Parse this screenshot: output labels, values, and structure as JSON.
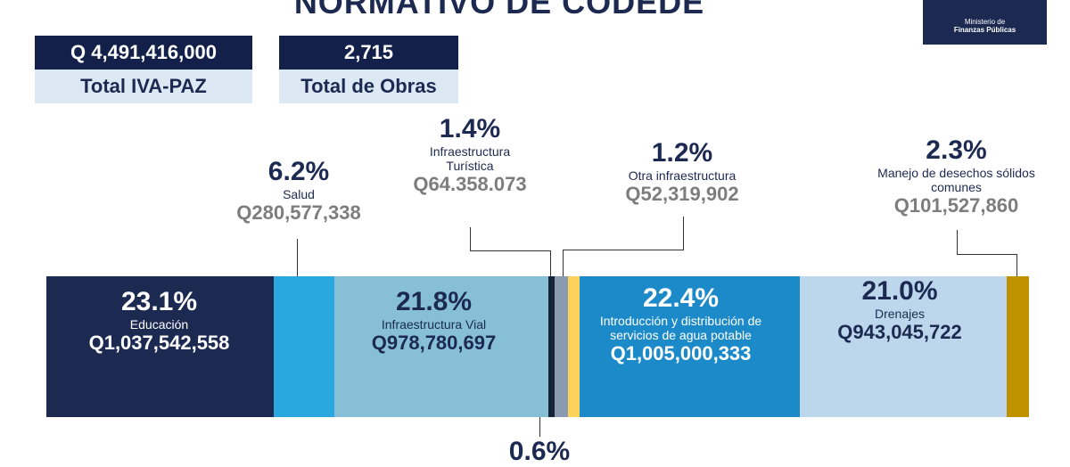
{
  "title": "NORMATIVO DE CODEDE",
  "logo": {
    "line1": "Ministerio de",
    "line2": "Finanzas Públicas"
  },
  "kpis": [
    {
      "value": "Q 4,491,416,000",
      "label": "Total IVA-PAZ"
    },
    {
      "value": "2,715",
      "label": "Total de Obras"
    }
  ],
  "chart_data": {
    "type": "bar",
    "orientation": "horizontal-stacked",
    "segments": [
      {
        "name": "Educación",
        "pct_label": "23.1%",
        "percent": 23.1,
        "amount": "Q1,037,542,558",
        "color": "#1c2951"
      },
      {
        "name": "Salud",
        "pct_label": "6.2%",
        "percent": 6.2,
        "amount": "Q280,577,338",
        "color": "#29a8e0"
      },
      {
        "name": "Infraestructura Vial",
        "pct_label": "21.8%",
        "percent": 21.8,
        "amount": "Q978,780,697",
        "color": "#86bfd6"
      },
      {
        "name": "",
        "pct_label": "0.6%",
        "percent": 0.6,
        "amount": "",
        "color": "#142338"
      },
      {
        "name": "Infraestructura Turística",
        "pct_label": "1.4%",
        "percent": 1.4,
        "amount": "Q64.358.073",
        "color": "#8a9bb0"
      },
      {
        "name": "Otra infraestructura",
        "pct_label": "1.2%",
        "percent": 1.2,
        "amount": "Q52,319,902",
        "color": "#fcd25a"
      },
      {
        "name": "Introducción y distribución de servicios de agua potable",
        "pct_label": "22.4%",
        "percent": 22.4,
        "amount": "Q1,005,000,333",
        "color": "#1c8ac9"
      },
      {
        "name": "Drenajes",
        "pct_label": "21.0%",
        "percent": 21.0,
        "amount": "Q943,045,722",
        "color": "#bcd7ec"
      },
      {
        "name": "Manejo de desechos sólidos comunes",
        "pct_label": "2.3%",
        "percent": 2.3,
        "amount": "Q101,527,860",
        "color": "#c09200"
      }
    ]
  }
}
